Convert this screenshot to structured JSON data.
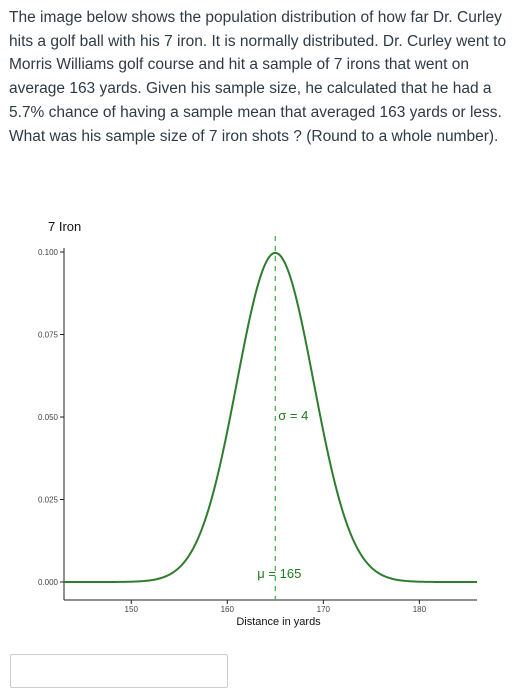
{
  "question": {
    "text": "The image below shows the population distribution of how far Dr. Curley hits a golf ball with his 7 iron.  It is normally distributed. Dr. Curley went to Morris Williams golf course and hit a sample of 7 irons that went on average 163 yards. Given his sample size, he calculated that he had a 5.7% chance of having a sample mean that averaged 163 yards or less. What was his sample size of 7 iron shots ? (Round to a whole number)."
  },
  "chart_data": {
    "type": "line",
    "title": "7 Iron",
    "xlabel": "Distance in yards",
    "ylabel": "",
    "xlim": [
      143,
      186
    ],
    "ylim": [
      0,
      0.1
    ],
    "x_ticks": [
      150,
      160,
      170,
      180
    ],
    "y_ticks": [
      0.0,
      0.025,
      0.05,
      0.075,
      0.1
    ],
    "y_tick_labels": [
      "0.000",
      "0.025",
      "0.050",
      "0.075",
      "0.100"
    ],
    "series": [
      {
        "distribution": "normal",
        "mean": 165,
        "sd": 4,
        "x_range": [
          143,
          186
        ]
      }
    ],
    "annotations": {
      "mean_label": "μ = 165",
      "sd_label": "σ = 4"
    },
    "grid": false,
    "colors": {
      "curve": "#2e7d2e",
      "mean_line": "#4caf50",
      "annotation": "#1f7a1f"
    }
  },
  "answer": {
    "value": "",
    "placeholder": ""
  }
}
